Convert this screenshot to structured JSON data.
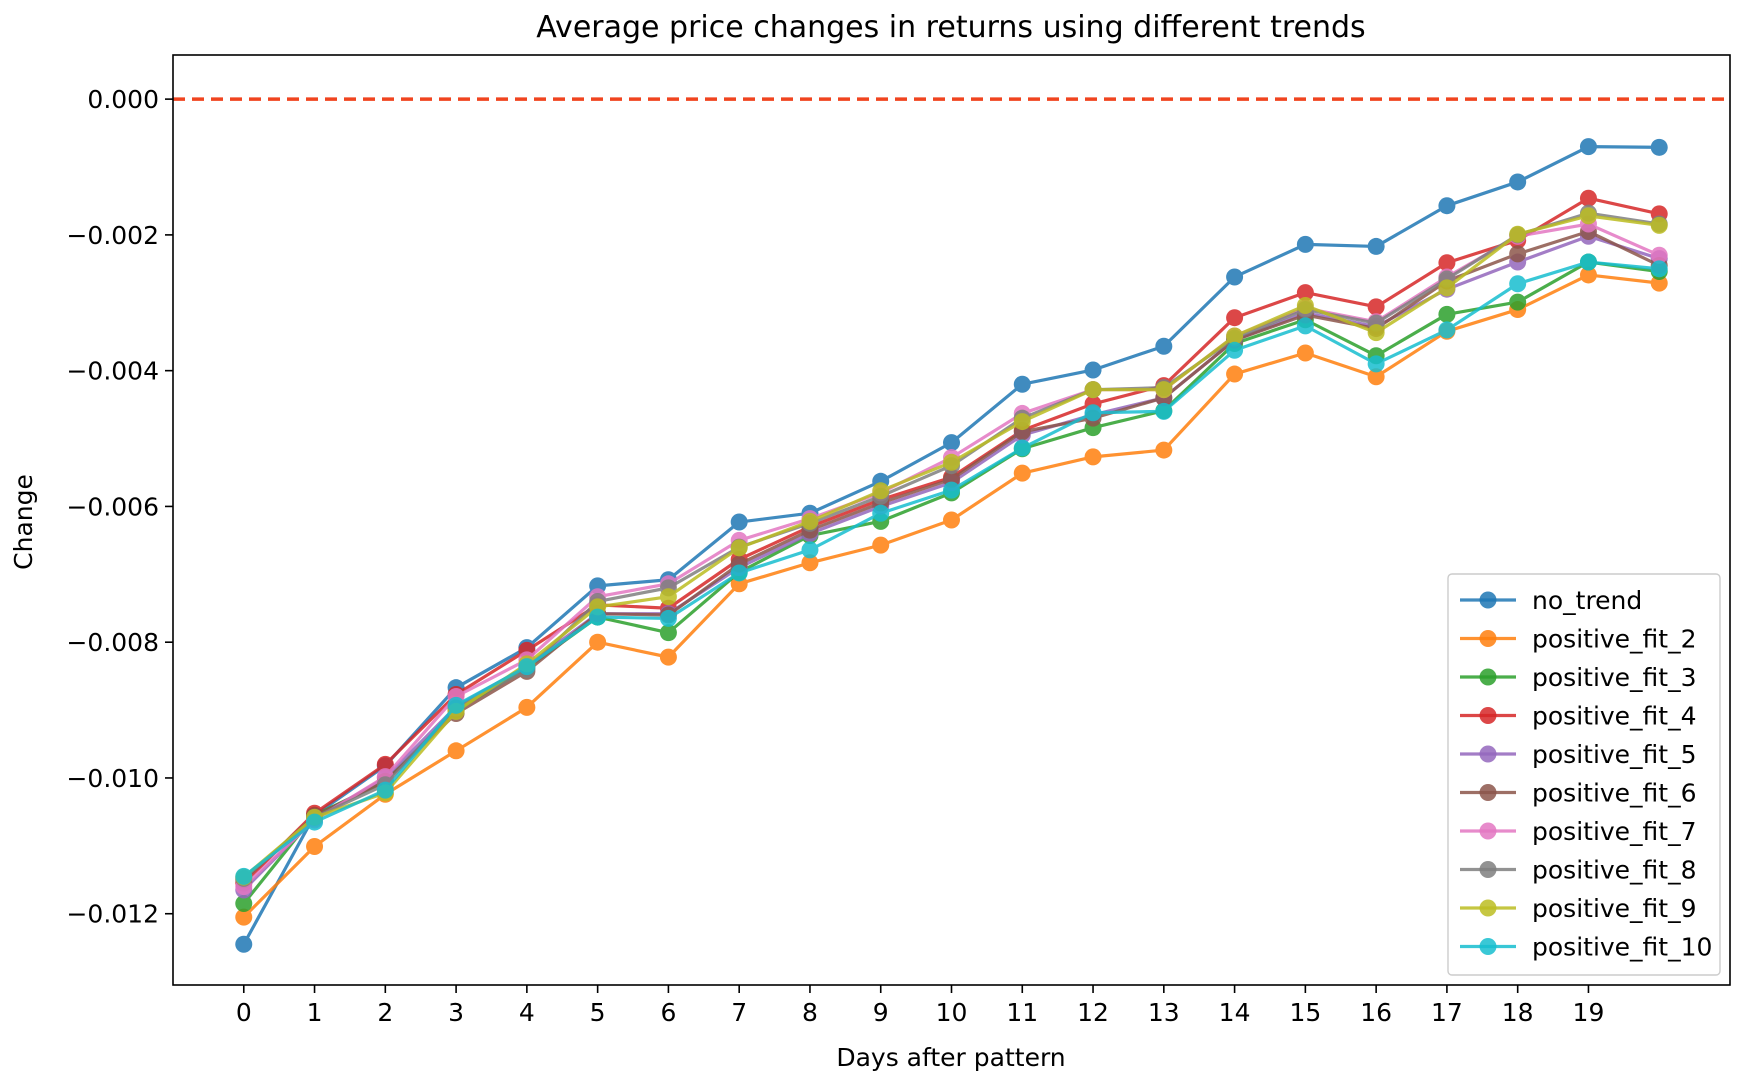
{
  "chart_data": {
    "type": "line",
    "title": "Average price changes in returns using different trends",
    "xlabel": "Days after pattern",
    "ylabel": "Change",
    "x": [
      0,
      1,
      2,
      3,
      4,
      5,
      6,
      7,
      8,
      9,
      10,
      11,
      12,
      13,
      14,
      15,
      16,
      17,
      18,
      19,
      20
    ],
    "xticks": [
      "0",
      "1",
      "2",
      "3",
      "4",
      "5",
      "6",
      "7",
      "8",
      "9",
      "10",
      "11",
      "12",
      "13",
      "14",
      "15",
      "16",
      "17",
      "18",
      "19"
    ],
    "yticks": [
      "−0.012",
      "−0.010",
      "−0.008",
      "−0.006",
      "−0.004",
      "−0.002",
      "0.000"
    ],
    "ytick_values": [
      -0.012,
      -0.01,
      -0.008,
      -0.006,
      -0.004,
      -0.002,
      0.0
    ],
    "xlim": [
      -1,
      21
    ],
    "ylim": [
      -0.01305,
      0.00065
    ],
    "grid": false,
    "legend_position": "lower-right",
    "reference_line": {
      "y": 0.0,
      "style": "dashed",
      "color": "#f0441f"
    },
    "series": [
      {
        "name": "no_trend",
        "color": "#1f77b4",
        "values": [
          -0.01245,
          -0.01055,
          -0.00982,
          -0.00867,
          -0.00808,
          -0.00717,
          -0.00708,
          -0.00623,
          -0.0061,
          -0.00563,
          -0.00506,
          -0.0042,
          -0.00399,
          -0.00364,
          -0.00262,
          -0.00214,
          -0.00217,
          -0.00157,
          -0.00122,
          -0.0007,
          -0.00071
        ]
      },
      {
        "name": "positive_fit_2",
        "color": "#ff7f0e",
        "values": [
          -0.01205,
          -0.01101,
          -0.01024,
          -0.0096,
          -0.00896,
          -0.008,
          -0.00822,
          -0.00714,
          -0.00683,
          -0.00657,
          -0.0062,
          -0.00551,
          -0.00527,
          -0.00517,
          -0.00405,
          -0.00374,
          -0.00409,
          -0.00342,
          -0.0031,
          -0.00259,
          -0.00271
        ]
      },
      {
        "name": "positive_fit_3",
        "color": "#2ca02c",
        "values": [
          -0.01185,
          -0.01055,
          -0.01005,
          -0.009,
          -0.00838,
          -0.00763,
          -0.00786,
          -0.00697,
          -0.00643,
          -0.00622,
          -0.0058,
          -0.00515,
          -0.00484,
          -0.00459,
          -0.0036,
          -0.00325,
          -0.00378,
          -0.00317,
          -0.00299,
          -0.0024,
          -0.00254
        ]
      },
      {
        "name": "positive_fit_4",
        "color": "#d62728",
        "values": [
          -0.01155,
          -0.01052,
          -0.0098,
          -0.00877,
          -0.00812,
          -0.00745,
          -0.0075,
          -0.00678,
          -0.0063,
          -0.0059,
          -0.00557,
          -0.00488,
          -0.00449,
          -0.00422,
          -0.00322,
          -0.00285,
          -0.00306,
          -0.00241,
          -0.00208,
          -0.00146,
          -0.00169
        ]
      },
      {
        "name": "positive_fit_5",
        "color": "#9467bd",
        "values": [
          -0.01165,
          -0.0106,
          -0.01,
          -0.00895,
          -0.00835,
          -0.00758,
          -0.00758,
          -0.0069,
          -0.0064,
          -0.006,
          -0.00565,
          -0.00495,
          -0.00465,
          -0.0044,
          -0.00355,
          -0.00315,
          -0.00335,
          -0.0028,
          -0.0024,
          -0.00202,
          -0.00235
        ]
      },
      {
        "name": "positive_fit_6",
        "color": "#8c564b",
        "values": [
          -0.0115,
          -0.01056,
          -0.01005,
          -0.00905,
          -0.00843,
          -0.00758,
          -0.0076,
          -0.00685,
          -0.00635,
          -0.00595,
          -0.0056,
          -0.0049,
          -0.0047,
          -0.0044,
          -0.00355,
          -0.00318,
          -0.00338,
          -0.00268,
          -0.00228,
          -0.00195,
          -0.00245
        ]
      },
      {
        "name": "positive_fit_7",
        "color": "#e377c2",
        "values": [
          -0.0116,
          -0.01062,
          -0.00998,
          -0.0088,
          -0.00826,
          -0.00733,
          -0.00714,
          -0.0065,
          -0.00618,
          -0.0058,
          -0.00528,
          -0.00463,
          -0.00428,
          -0.00428,
          -0.00349,
          -0.00308,
          -0.00328,
          -0.00262,
          -0.00202,
          -0.00184,
          -0.0023
        ]
      },
      {
        "name": "positive_fit_8",
        "color": "#7f7f7f",
        "values": [
          -0.01148,
          -0.01058,
          -0.0101,
          -0.00897,
          -0.0084,
          -0.0074,
          -0.0072,
          -0.0066,
          -0.00625,
          -0.00585,
          -0.0054,
          -0.0047,
          -0.00428,
          -0.00425,
          -0.00352,
          -0.0031,
          -0.0033,
          -0.00265,
          -0.002,
          -0.00168,
          -0.00184
        ]
      },
      {
        "name": "positive_fit_9",
        "color": "#bcbd22",
        "values": [
          -0.01146,
          -0.01058,
          -0.01022,
          -0.00902,
          -0.00832,
          -0.00748,
          -0.00733,
          -0.00661,
          -0.00622,
          -0.00577,
          -0.00535,
          -0.00475,
          -0.00428,
          -0.00428,
          -0.00349,
          -0.00304,
          -0.00344,
          -0.00278,
          -0.00199,
          -0.00172,
          -0.00186
        ]
      },
      {
        "name": "positive_fit_10",
        "color": "#17becf",
        "values": [
          -0.01145,
          -0.01065,
          -0.01018,
          -0.00893,
          -0.00836,
          -0.00763,
          -0.00765,
          -0.00698,
          -0.00664,
          -0.0061,
          -0.00576,
          -0.00514,
          -0.00462,
          -0.0046,
          -0.0037,
          -0.00334,
          -0.0039,
          -0.0034,
          -0.00272,
          -0.0024,
          -0.0025
        ]
      }
    ]
  }
}
